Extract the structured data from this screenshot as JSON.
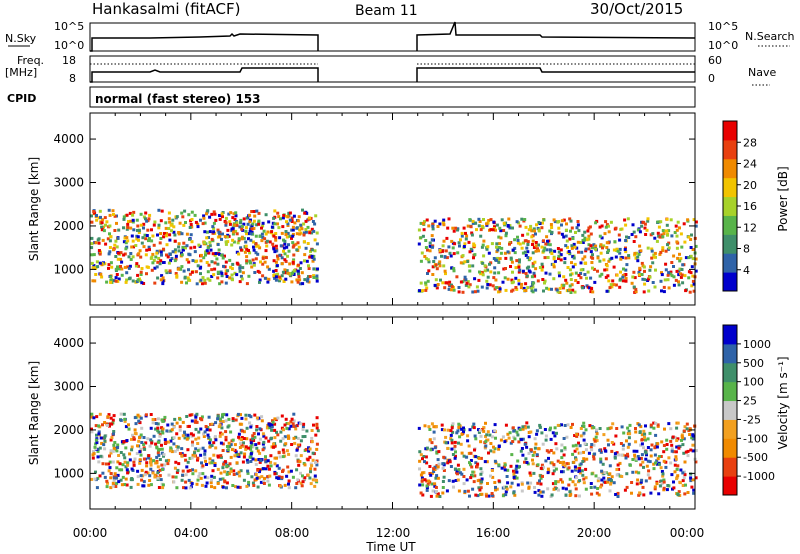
{
  "header": {
    "station": "Hankasalmi (fitACF)",
    "beam": "Beam 11",
    "date": "30/Oct/2015"
  },
  "strip_labels": {
    "nsky": "N.Sky",
    "nsearch": "N.Search",
    "freq": "Freq.",
    "freq_unit": "[MHz]",
    "nave": "Nave",
    "cpid": "CPID",
    "nsky_ticks": [
      "10^5",
      "10^0"
    ],
    "nsearch_ticks": [
      "10^5",
      "10^0"
    ],
    "freq_ticks": [
      "18",
      "8"
    ],
    "nave_ticks": [
      "60",
      "0"
    ]
  },
  "cpid_text": "normal (fast stereo) 153",
  "chart_data": [
    {
      "type": "heatmap",
      "panel": "power",
      "ylabel": "Slant Range [km]",
      "yticks": [
        "4000",
        "3000",
        "2000",
        "1000"
      ],
      "ylim": [
        180,
        4600
      ],
      "xlim": [
        0,
        24
      ],
      "colorbar_label": "Power [dB]",
      "colorbar_ticks": [
        "28",
        "24",
        "20",
        "16",
        "12",
        "8",
        "4"
      ],
      "colors": [
        "#0000cc",
        "#2f63a8",
        "#3f8f6a",
        "#58b44a",
        "#a7d22a",
        "#f2c400",
        "#f08a00",
        "#e84010",
        "#e80000"
      ],
      "scatter_regions": [
        {
          "t": [
            0.0,
            9.0
          ],
          "r": [
            700,
            2400
          ]
        },
        {
          "t": [
            13.0,
            24.0
          ],
          "r": [
            500,
            2200
          ]
        }
      ]
    },
    {
      "type": "heatmap",
      "panel": "velocity",
      "ylabel": "Slant Range [km]",
      "yticks": [
        "4000",
        "3000",
        "2000",
        "1000"
      ],
      "ylim": [
        180,
        4600
      ],
      "xlim": [
        0,
        24
      ],
      "colorbar_label": "Velocity [m s⁻¹]",
      "colorbar_ticks": [
        "1000",
        "500",
        "100",
        "25",
        "-25",
        "-100",
        "-500",
        "-1000"
      ],
      "colors": [
        "#e80000",
        "#e84010",
        "#f08a00",
        "#f2a020",
        "#c8c8c8",
        "#58b44a",
        "#3f8f6a",
        "#2f63a8",
        "#0000cc"
      ],
      "scatter_regions": [
        {
          "t": [
            0.0,
            9.0
          ],
          "r": [
            700,
            2400
          ]
        },
        {
          "t": [
            13.0,
            24.0
          ],
          "r": [
            500,
            2200
          ]
        }
      ]
    }
  ],
  "xaxis": {
    "ticks": [
      "00:00",
      "04:00",
      "08:00",
      "12:00",
      "16:00",
      "20:00",
      "00:00"
    ],
    "label": "Time UT"
  }
}
